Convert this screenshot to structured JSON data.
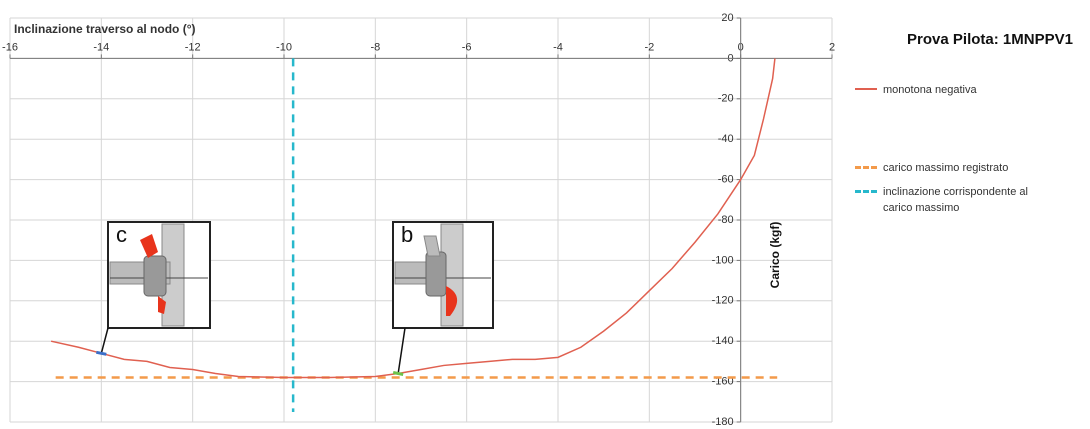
{
  "chart_data": {
    "type": "line",
    "title": "Prova Pilota: 1MNPPV1",
    "x_label": "Inclinazione traverso al nodo (°)",
    "y_label": "Carico (kgf)",
    "xlim": [
      -16,
      2
    ],
    "ylim": [
      -180,
      20
    ],
    "xticks": [
      -16,
      -14,
      -12,
      -10,
      -8,
      -6,
      -4,
      -2,
      0,
      2
    ],
    "yticks": [
      20,
      0,
      -20,
      -40,
      -60,
      -80,
      -100,
      -120,
      -140,
      -160,
      -180
    ],
    "grid": true,
    "x": [
      -15.1,
      -14.5,
      -14,
      -13.5,
      -13,
      -12.5,
      -12,
      -11.5,
      -11,
      -10,
      -9,
      -8,
      -7.5,
      -7,
      -6.5,
      -6,
      -5.5,
      -5,
      -4.5,
      -4,
      -3.5,
      -3,
      -2.5,
      -2,
      -1.5,
      -1,
      -0.5,
      0,
      0.3,
      0.5,
      0.7,
      0.75
    ],
    "series": [
      {
        "name": "monotona negativa",
        "color": "#e06050",
        "values": [
          -140,
          -143,
          -146,
          -149,
          -150,
          -153,
          -154,
          -156,
          -157.5,
          -158,
          -158,
          -157.5,
          -156,
          -154,
          -152,
          -151,
          -150,
          -149,
          -149,
          -148,
          -143,
          -135,
          -126,
          -115,
          -104,
          -91,
          -77,
          -60,
          -48,
          -30,
          -10,
          0
        ]
      }
    ],
    "reference_lines": [
      {
        "name": "carico massimo registrato",
        "axis": "y",
        "value": -158,
        "color": "#f39a4a"
      },
      {
        "name": "inclinazione corrispondente al carico massimo",
        "axis": "x",
        "value": -9.8,
        "color": "#27b8cc"
      }
    ],
    "annotations": [
      {
        "label": "c",
        "x": -14,
        "y": -146,
        "color": "#3a6fc8"
      },
      {
        "label": "b",
        "x": -7.5,
        "y": -156,
        "color": "#6cc24a"
      }
    ]
  }
}
